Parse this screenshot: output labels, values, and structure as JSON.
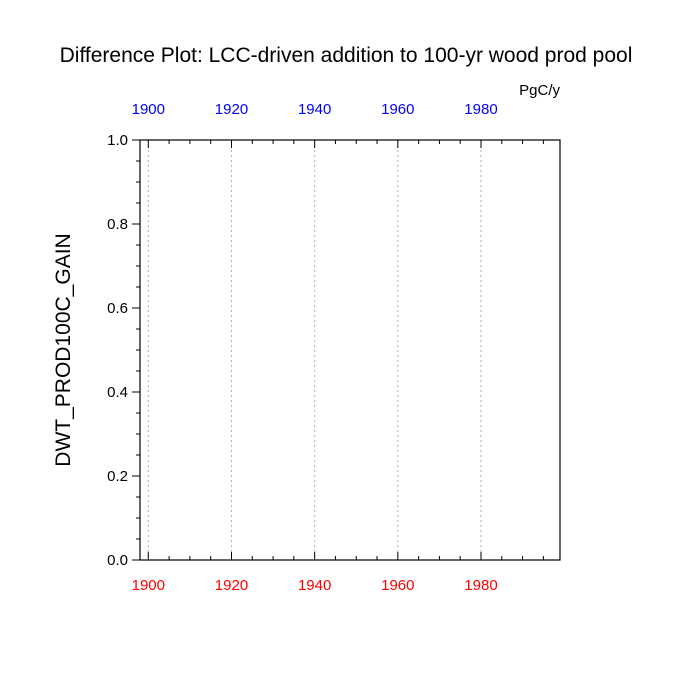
{
  "chart_data": {
    "type": "line",
    "title": "Difference Plot: LCC-driven addition to 100-yr wood prod pool",
    "units": "PgC/y",
    "ylabel": "DWT_PROD100C_GAIN",
    "xlim": [
      1898,
      1999
    ],
    "ylim": [
      0,
      1
    ],
    "xticks_major": [
      1900,
      1920,
      1940,
      1960,
      1980
    ],
    "xticks_minor_step": 5,
    "yticks_major": [
      0.0,
      0.2,
      0.4,
      0.6,
      0.8,
      1.0
    ],
    "yticks_minor_step": 0.05,
    "yticklabels": [
      "0.0",
      "0.2",
      "0.4",
      "0.6",
      "0.8",
      "1.0"
    ],
    "bottom_axis_color": "#ff0000",
    "top_axis_color": "#0000ff",
    "grid": "vertical dotted at major x ticks",
    "series": []
  }
}
